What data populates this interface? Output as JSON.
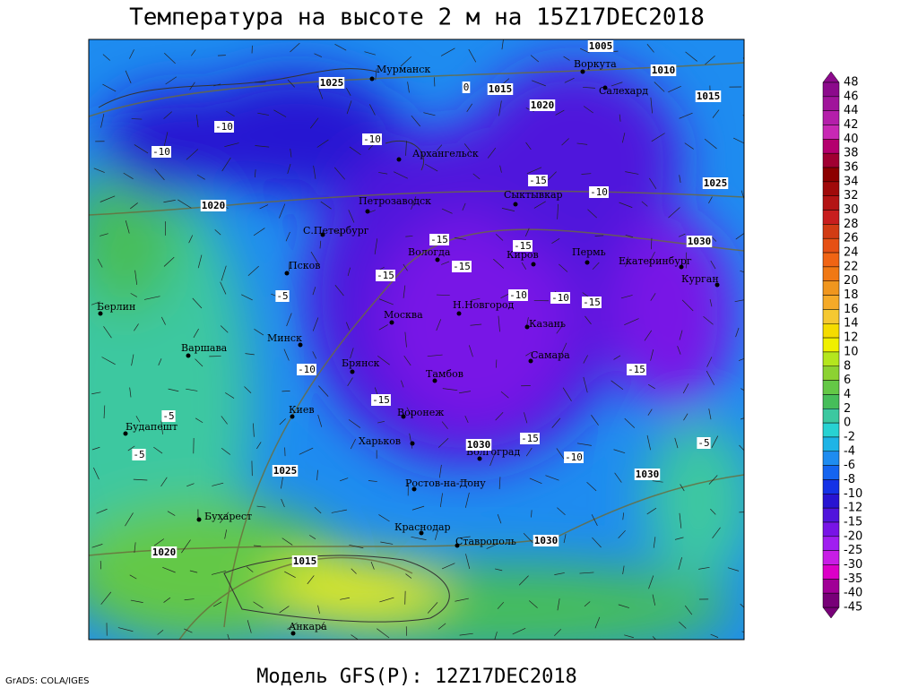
{
  "header": {
    "title": "Температура на высоте 2 м на 15Z17DEC2018"
  },
  "footer": {
    "model": "Модель GFS(P): 12Z17DEC2018",
    "credit": "GrADS: COLA/IGES"
  },
  "colorbar": {
    "levels": [
      48,
      46,
      44,
      42,
      40,
      38,
      36,
      34,
      32,
      30,
      28,
      26,
      24,
      22,
      20,
      18,
      16,
      14,
      12,
      10,
      8,
      6,
      4,
      2,
      0,
      -2,
      -4,
      -6,
      -8,
      -10,
      -12,
      -15,
      -20,
      -25,
      -30,
      -35,
      -40,
      -45
    ],
    "colors": [
      "#8c0a8c",
      "#a0149b",
      "#b41eaa",
      "#c828b4",
      "#b4006e",
      "#a00032",
      "#8c0000",
      "#a00a0a",
      "#b41414",
      "#c81e1e",
      "#d23c14",
      "#e65014",
      "#f06414",
      "#f07814",
      "#f0961e",
      "#f5aa28",
      "#f5c832",
      "#f5dc00",
      "#f0f000",
      "#b4e61e",
      "#8cd232",
      "#64c846",
      "#46be5a",
      "#3cc8a0",
      "#28d2d2",
      "#1eb4e6",
      "#1e8cf0",
      "#1464f0",
      "#1432e6",
      "#2814d2",
      "#5014dc",
      "#7814e6",
      "#a01ef0",
      "#c81ee6",
      "#dc00c8",
      "#a00096",
      "#780078"
    ]
  },
  "cities": [
    "Мурманск",
    "Воркута",
    "Салехард",
    "Архангельск",
    "Сыктывкар",
    "Петрозаводск",
    "С.Петербург",
    "Псков",
    "Вологда",
    "Киров",
    "Пермь",
    "Екатеринбург",
    "Курган",
    "Берлин",
    "Варшава",
    "Минск",
    "Москва",
    "Н.Новгород",
    "Казань",
    "Брянск",
    "Тамбов",
    "Самара",
    "Киев",
    "Воронеж",
    "Будапешт",
    "Харьков",
    "Волгоград",
    "Ростов-на-Дону",
    "Бухарест",
    "Краснодар",
    "Ставрополь",
    "Анкара"
  ],
  "isobars": [
    1025,
    1015,
    1020,
    1005,
    1010,
    1015,
    1020,
    1025,
    1030,
    1030,
    1030,
    1025,
    1020,
    1015,
    1030
  ],
  "isotherms": [
    -10,
    -10,
    -10,
    -15,
    -10,
    -15,
    -15,
    -15,
    -15,
    -10,
    -10,
    -15,
    -15,
    -10,
    -15,
    -5,
    -15,
    -10,
    -5,
    -5,
    -5,
    0
  ]
}
